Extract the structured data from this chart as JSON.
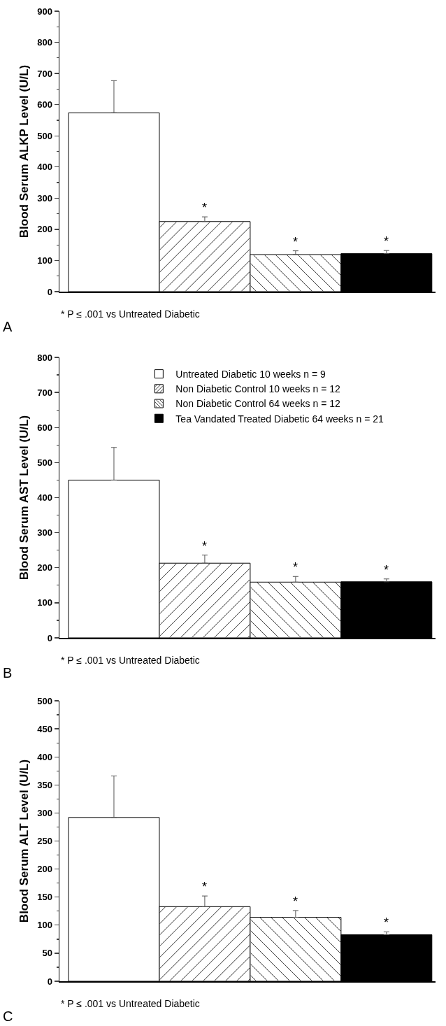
{
  "chart_data": [
    {
      "type": "bar",
      "categories": [
        null,
        null,
        null,
        null
      ],
      "ylabel": "Blood Serum ALKP Level (U/L)",
      "ylim": [
        0,
        900
      ],
      "yticks": [
        0,
        100,
        200,
        300,
        400,
        500,
        600,
        700,
        800,
        900
      ],
      "grid": false,
      "legend": false,
      "series": [
        {
          "color": "#ffffff",
          "values": [
            574,
            null,
            null,
            null
          ],
          "errors": [
            [
              574,
              677
            ],
            null,
            null,
            null
          ],
          "value_labels": [
            null,
            null,
            null,
            null
          ]
        },
        {
          "color": "#ffffff",
          "values": [
            null,
            225,
            null,
            null
          ],
          "errors": [
            null,
            [
              225,
              240
            ],
            null,
            null
          ],
          "value_labels": [
            null,
            "*",
            null,
            null
          ]
        },
        {
          "color": "#ffffff",
          "values": [
            null,
            null,
            119,
            null
          ],
          "errors": [
            null,
            null,
            [
              119,
              131
            ],
            null
          ],
          "value_labels": [
            null,
            null,
            "*",
            null
          ]
        },
        {
          "color": "#000000",
          "values": [
            null,
            null,
            null,
            122
          ],
          "errors": [
            null,
            null,
            null,
            [
              122,
              132
            ]
          ],
          "value_labels": [
            null,
            null,
            null,
            "*"
          ]
        }
      ],
      "annotations": [
        "* P ≤ .001 vs Untreated Diabetic",
        "A"
      ]
    },
    {
      "type": "bar",
      "categories": [
        null,
        null,
        null,
        null
      ],
      "ylabel": "Blood Serum AST Level (U/L)",
      "ylim": [
        0,
        800
      ],
      "yticks": [
        0,
        100,
        200,
        300,
        400,
        500,
        600,
        700,
        800
      ],
      "grid": false,
      "legend": "top right",
      "series": [
        {
          "name": "Untreated Diabetic 10 weeks n = 9",
          "color": "#ffffff",
          "values": [
            450,
            null,
            null,
            null
          ],
          "errors": [
            [
              450,
              543
            ],
            null,
            null,
            null
          ],
          "value_labels": [
            null,
            null,
            null,
            null
          ]
        },
        {
          "name": "Non Diabetic Control 10 weeks n = 12",
          "color": "#ffffff",
          "values": [
            null,
            213,
            null,
            null
          ],
          "errors": [
            null,
            [
              213,
              236
            ],
            null,
            null
          ],
          "value_labels": [
            null,
            "*",
            null,
            null
          ]
        },
        {
          "name": "Non Diabetic Control 64 weeks n = 12",
          "color": "#ffffff",
          "values": [
            null,
            null,
            159,
            null
          ],
          "errors": [
            null,
            null,
            [
              159,
              175
            ],
            null
          ],
          "value_labels": [
            null,
            null,
            "*",
            null
          ]
        },
        {
          "name": "Tea Vandated Treated Diabetic 64 weeks n = 21",
          "color": "#000000",
          "values": [
            null,
            null,
            null,
            160
          ],
          "errors": [
            null,
            null,
            null,
            [
              160,
              168
            ]
          ],
          "value_labels": [
            null,
            null,
            null,
            "*"
          ]
        }
      ],
      "annotations": [
        "* P ≤ .001 vs Untreated Diabetic",
        "B"
      ]
    },
    {
      "type": "bar",
      "categories": [
        null,
        null,
        null,
        null
      ],
      "ylabel": "Blood Serum ALT Level (U/L)",
      "ylim": [
        0,
        500
      ],
      "yticks": [
        0,
        50,
        100,
        150,
        200,
        250,
        300,
        350,
        400,
        450,
        500
      ],
      "grid": false,
      "legend": false,
      "series": [
        {
          "color": "#ffffff",
          "values": [
            292,
            null,
            null,
            null
          ],
          "errors": [
            [
              292,
              366
            ],
            null,
            null,
            null
          ],
          "value_labels": [
            null,
            null,
            null,
            null
          ]
        },
        {
          "color": "#ffffff",
          "values": [
            null,
            133,
            null,
            null
          ],
          "errors": [
            null,
            [
              133,
              152
            ],
            null,
            null
          ],
          "value_labels": [
            null,
            "*",
            null,
            null
          ]
        },
        {
          "color": "#ffffff",
          "values": [
            null,
            null,
            114,
            null
          ],
          "errors": [
            null,
            null,
            [
              114,
              126
            ],
            null
          ],
          "value_labels": [
            null,
            null,
            "*",
            null
          ]
        },
        {
          "color": "#000000",
          "values": [
            null,
            null,
            null,
            83
          ],
          "errors": [
            null,
            null,
            null,
            [
              83,
              88
            ]
          ],
          "value_labels": [
            null,
            null,
            null,
            "*"
          ]
        }
      ],
      "annotations": [
        "* P ≤ .001 vs Untreated Diabetic",
        "C"
      ]
    }
  ]
}
